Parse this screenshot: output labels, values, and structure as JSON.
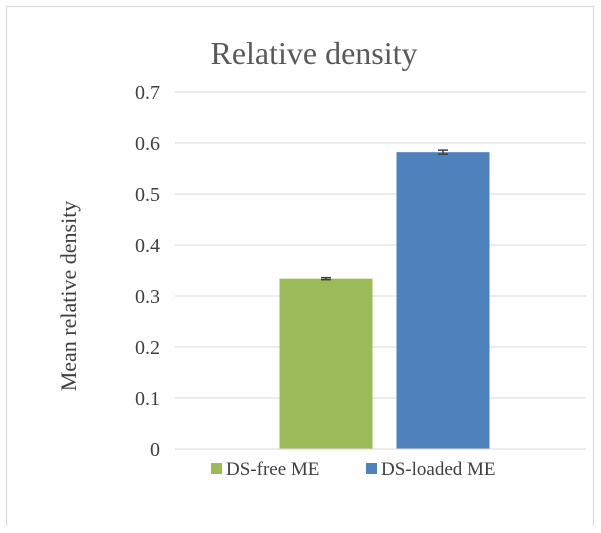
{
  "chart_data": {
    "type": "bar",
    "title": "Relative density",
    "xlabel": "",
    "ylabel": "Mean relative density",
    "ylim": [
      0,
      0.7
    ],
    "yticks": [
      0,
      0.1,
      0.2,
      0.3,
      0.4,
      0.5,
      0.6,
      0.7
    ],
    "ytick_labels": [
      "0",
      "0.1",
      "0.2",
      "0.3",
      "0.4",
      "0.5",
      "0.6",
      "0.7"
    ],
    "grid": true,
    "legend_position": "bottom",
    "series": [
      {
        "name": "DS-free ME",
        "value": 0.334,
        "error": 0.002,
        "color": "#9bbb59"
      },
      {
        "name": "DS-loaded ME",
        "value": 0.582,
        "error": 0.004,
        "color": "#4f81bd"
      }
    ]
  }
}
